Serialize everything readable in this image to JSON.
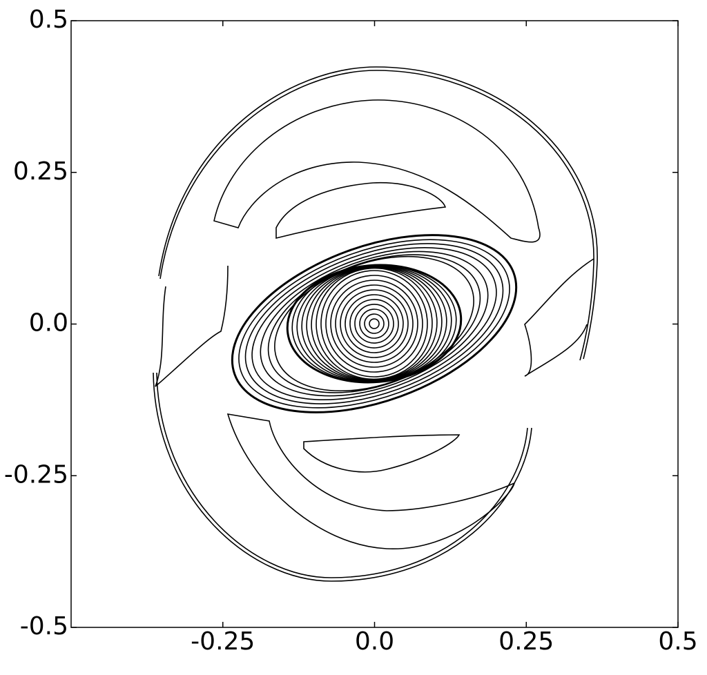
{
  "chart_data": {
    "type": "contour",
    "xlim": [
      -0.5,
      0.5
    ],
    "ylim": [
      -0.5,
      0.5
    ],
    "xticks": [
      -0.25,
      {
        "value": 0,
        "label": "0.0"
      },
      0.25,
      0.5
    ],
    "yticks": [
      -0.5,
      -0.25,
      {
        "value": 0,
        "label": "0.0"
      },
      0.25,
      0.5
    ]
  }
}
